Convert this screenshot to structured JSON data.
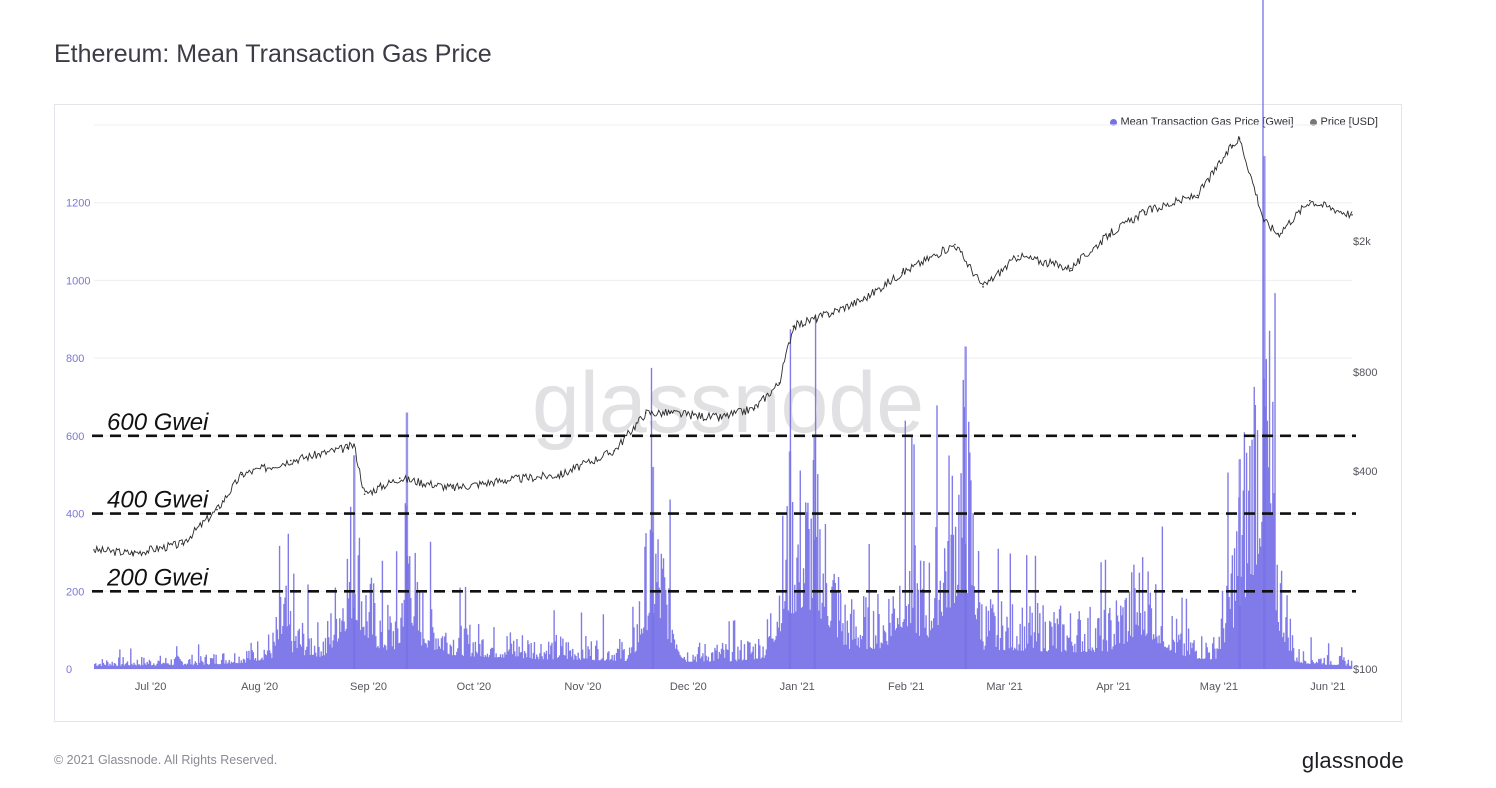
{
  "title": "Ethereum: Mean Transaction Gas Price",
  "footer": "© 2021 Glassnode. All Rights Reserved.",
  "brand": "glassnode",
  "watermark": "glassnode",
  "legend": {
    "gas": "Mean Transaction Gas Price [Gwei]",
    "price": "Price [USD]"
  },
  "colors": {
    "gas": "#7570e6",
    "price": "#777777",
    "line": "#2b2b2b",
    "axis_left": "#7b77d6"
  },
  "chart_data": {
    "type": "area",
    "x_range": [
      "2020-06-20",
      "2021-06-13"
    ],
    "x_ticks": [
      "Jul '20",
      "Aug '20",
      "Sep '20",
      "Oct '20",
      "Nov '20",
      "Dec '20",
      "Jan '21",
      "Feb '21",
      "Mar '21",
      "Apr '21",
      "May '21",
      "Jun '21"
    ],
    "y_left": {
      "label": "Gwei",
      "ticks": [
        "0",
        "200",
        "400",
        "600",
        "800",
        "1000",
        "1200"
      ],
      "range": [
        0,
        1400
      ]
    },
    "y_right": {
      "label": "USD",
      "scale": "log",
      "ticks": [
        "$100",
        "$400",
        "$800",
        "$2k"
      ],
      "range": [
        100,
        4500
      ]
    },
    "reference_lines": [
      {
        "value": 600,
        "label": "600 Gwei"
      },
      {
        "value": 400,
        "label": "400 Gwei"
      },
      {
        "value": 200,
        "label": "200 Gwei"
      }
    ],
    "series": [
      {
        "name": "Mean Transaction Gas Price [Gwei]",
        "axis": "left",
        "points": [
          [
            "2020-06-20",
            30
          ],
          [
            "2020-07-05",
            35
          ],
          [
            "2020-07-20",
            40
          ],
          [
            "2020-08-01",
            60
          ],
          [
            "2020-08-10",
            110
          ],
          [
            "2020-08-13",
            270
          ],
          [
            "2020-08-16",
            150
          ],
          [
            "2020-08-25",
            120
          ],
          [
            "2020-08-30",
            360
          ],
          [
            "2020-09-02",
            550
          ],
          [
            "2020-09-05",
            300
          ],
          [
            "2020-09-10",
            180
          ],
          [
            "2020-09-15",
            200
          ],
          [
            "2020-09-17",
            660
          ],
          [
            "2020-09-20",
            250
          ],
          [
            "2020-09-30",
            140
          ],
          [
            "2020-10-10",
            120
          ],
          [
            "2020-10-25",
            100
          ],
          [
            "2020-11-10",
            90
          ],
          [
            "2020-11-20",
            80
          ],
          [
            "2020-11-26",
            520
          ],
          [
            "2020-12-05",
            70
          ],
          [
            "2020-12-20",
            80
          ],
          [
            "2020-12-28",
            110
          ],
          [
            "2021-01-04",
            560
          ],
          [
            "2021-01-11",
            600
          ],
          [
            "2021-01-20",
            200
          ],
          [
            "2021-01-31",
            210
          ],
          [
            "2021-02-05",
            430
          ],
          [
            "2021-02-12",
            300
          ],
          [
            "2021-02-23",
            830
          ],
          [
            "2021-02-28",
            200
          ],
          [
            "2021-03-10",
            190
          ],
          [
            "2021-03-25",
            170
          ],
          [
            "2021-04-05",
            180
          ],
          [
            "2021-04-15",
            350
          ],
          [
            "2021-04-25",
            120
          ],
          [
            "2021-05-05",
            90
          ],
          [
            "2021-05-12",
            540
          ],
          [
            "2021-05-19",
            1320
          ],
          [
            "2021-05-23",
            400
          ],
          [
            "2021-05-28",
            60
          ],
          [
            "2021-06-13",
            30
          ]
        ]
      },
      {
        "name": "Price [USD]",
        "axis": "right",
        "points": [
          [
            "2020-06-20",
            230
          ],
          [
            "2020-07-01",
            225
          ],
          [
            "2020-07-15",
            240
          ],
          [
            "2020-07-25",
            305
          ],
          [
            "2020-08-01",
            390
          ],
          [
            "2020-08-15",
            430
          ],
          [
            "2020-08-31",
            470
          ],
          [
            "2020-09-02",
            480
          ],
          [
            "2020-09-05",
            340
          ],
          [
            "2020-09-15",
            380
          ],
          [
            "2020-09-30",
            355
          ],
          [
            "2020-10-15",
            375
          ],
          [
            "2020-10-31",
            390
          ],
          [
            "2020-11-15",
            460
          ],
          [
            "2020-11-24",
            600
          ],
          [
            "2020-12-01",
            600
          ],
          [
            "2020-12-15",
            580
          ],
          [
            "2020-12-25",
            620
          ],
          [
            "2021-01-01",
            740
          ],
          [
            "2021-01-05",
            1100
          ],
          [
            "2021-01-15",
            1200
          ],
          [
            "2021-01-25",
            1330
          ],
          [
            "2021-02-05",
            1600
          ],
          [
            "2021-02-20",
            1950
          ],
          [
            "2021-02-28",
            1450
          ],
          [
            "2021-03-10",
            1800
          ],
          [
            "2021-03-25",
            1650
          ],
          [
            "2021-04-05",
            2100
          ],
          [
            "2021-04-15",
            2450
          ],
          [
            "2021-04-30",
            2750
          ],
          [
            "2021-05-10",
            3900
          ],
          [
            "2021-05-12",
            4100
          ],
          [
            "2021-05-19",
            2300
          ],
          [
            "2021-05-23",
            2100
          ],
          [
            "2021-06-01",
            2650
          ],
          [
            "2021-06-13",
            2400
          ]
        ]
      }
    ]
  }
}
